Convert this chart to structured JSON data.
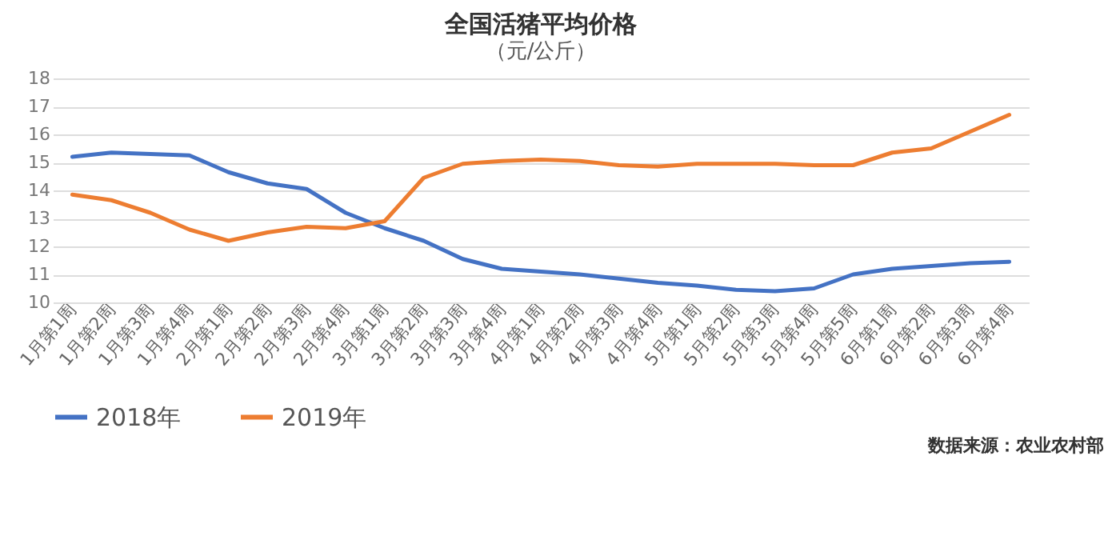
{
  "chart_data": {
    "type": "line",
    "title": "全国活猪平均价格",
    "subtitle": "（元/公斤）",
    "categories": [
      "1月第1周",
      "1月第2周",
      "1月第3周",
      "1月第4周",
      "2月第1周",
      "2月第2周",
      "2月第3周",
      "2月第4周",
      "3月第1周",
      "3月第2周",
      "3月第3周",
      "3月第4周",
      "4月第1周",
      "4月第2周",
      "4月第3周",
      "4月第4周",
      "5月第1周",
      "5月第2周",
      "5月第3周",
      "5月第4周",
      "5月第5周",
      "6月第1周",
      "6月第2周",
      "6月第3周",
      "6月第4周"
    ],
    "series": [
      {
        "name": "2018年",
        "color": "#4472c4",
        "values": [
          15.2,
          15.35,
          15.3,
          15.25,
          14.65,
          14.25,
          14.05,
          13.2,
          12.65,
          12.2,
          11.55,
          11.2,
          11.1,
          11.0,
          10.85,
          10.7,
          10.6,
          10.45,
          10.4,
          10.5,
          11.0,
          11.2,
          11.3,
          11.4,
          11.45
        ]
      },
      {
        "name": "2019年",
        "color": "#ed7d31",
        "values": [
          13.85,
          13.65,
          13.2,
          12.6,
          12.2,
          12.5,
          12.7,
          12.65,
          12.9,
          14.45,
          14.95,
          15.05,
          15.1,
          15.05,
          14.9,
          14.85,
          14.95,
          14.95,
          14.95,
          14.9,
          14.9,
          15.35,
          15.5,
          16.1,
          16.7
        ]
      }
    ],
    "ylim": [
      10,
      18
    ],
    "yticks": [
      10,
      11,
      12,
      13,
      14,
      15,
      16,
      17,
      18
    ],
    "grid": "y",
    "legend": "bottom",
    "marker": "none",
    "line_style": "solid",
    "annotations": [
      "数据来源：农业农村部"
    ]
  }
}
